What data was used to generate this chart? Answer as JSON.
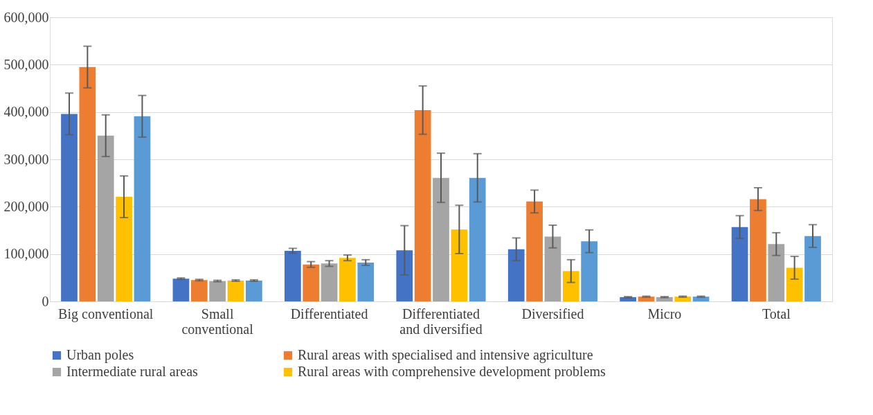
{
  "chart_data": {
    "type": "bar",
    "categories": [
      "Big conventional",
      "Small conventional",
      "Differentiated",
      "Differentiated and diversified",
      "Diversified",
      "Micro",
      "Total"
    ],
    "series": [
      {
        "name": "Urban poles",
        "color": "#4472c4",
        "values": [
          396000,
          48000,
          107000,
          108000,
          110000,
          9000,
          157000
        ],
        "errors": [
          44000,
          1500,
          5000,
          52000,
          24000,
          1000,
          24000
        ]
      },
      {
        "name": "Rural areas with specialised and intensive agriculture",
        "color": "#ed7d31",
        "values": [
          495000,
          45000,
          78000,
          404000,
          211000,
          10000,
          216000
        ],
        "errors": [
          44000,
          1500,
          6000,
          51000,
          24000,
          1000,
          24000
        ]
      },
      {
        "name": "Intermediate rural areas",
        "color": "#a5a5a5",
        "values": [
          350000,
          43000,
          80000,
          261000,
          137000,
          9000,
          121000
        ],
        "errors": [
          44000,
          1500,
          6000,
          52000,
          24000,
          1000,
          24000
        ]
      },
      {
        "name": "Rural areas with comprehensive development problems",
        "color": "#ffc000",
        "values": [
          221000,
          44000,
          92000,
          152000,
          64000,
          10000,
          71000
        ],
        "errors": [
          44000,
          1500,
          6000,
          51000,
          24000,
          1000,
          24000
        ]
      },
      {
        "color": "#5b9bd5",
        "values": [
          391000,
          44000,
          82000,
          261000,
          127000,
          10000,
          138000
        ],
        "errors": [
          44000,
          1500,
          6000,
          51000,
          24000,
          1000,
          24000
        ]
      }
    ],
    "ylim": [
      0,
      600000
    ],
    "yticks": [
      0,
      {
        "value": 100000,
        "label": "100,000"
      },
      {
        "value": 200000,
        "label": "200,000"
      },
      {
        "value": 300000,
        "label": "300,000"
      },
      {
        "value": 400000,
        "label": "400,000"
      },
      {
        "value": 500000,
        "label": "500,000"
      },
      {
        "value": 600000,
        "label": "600,000"
      }
    ],
    "grid": "y",
    "legend": "bottom"
  }
}
